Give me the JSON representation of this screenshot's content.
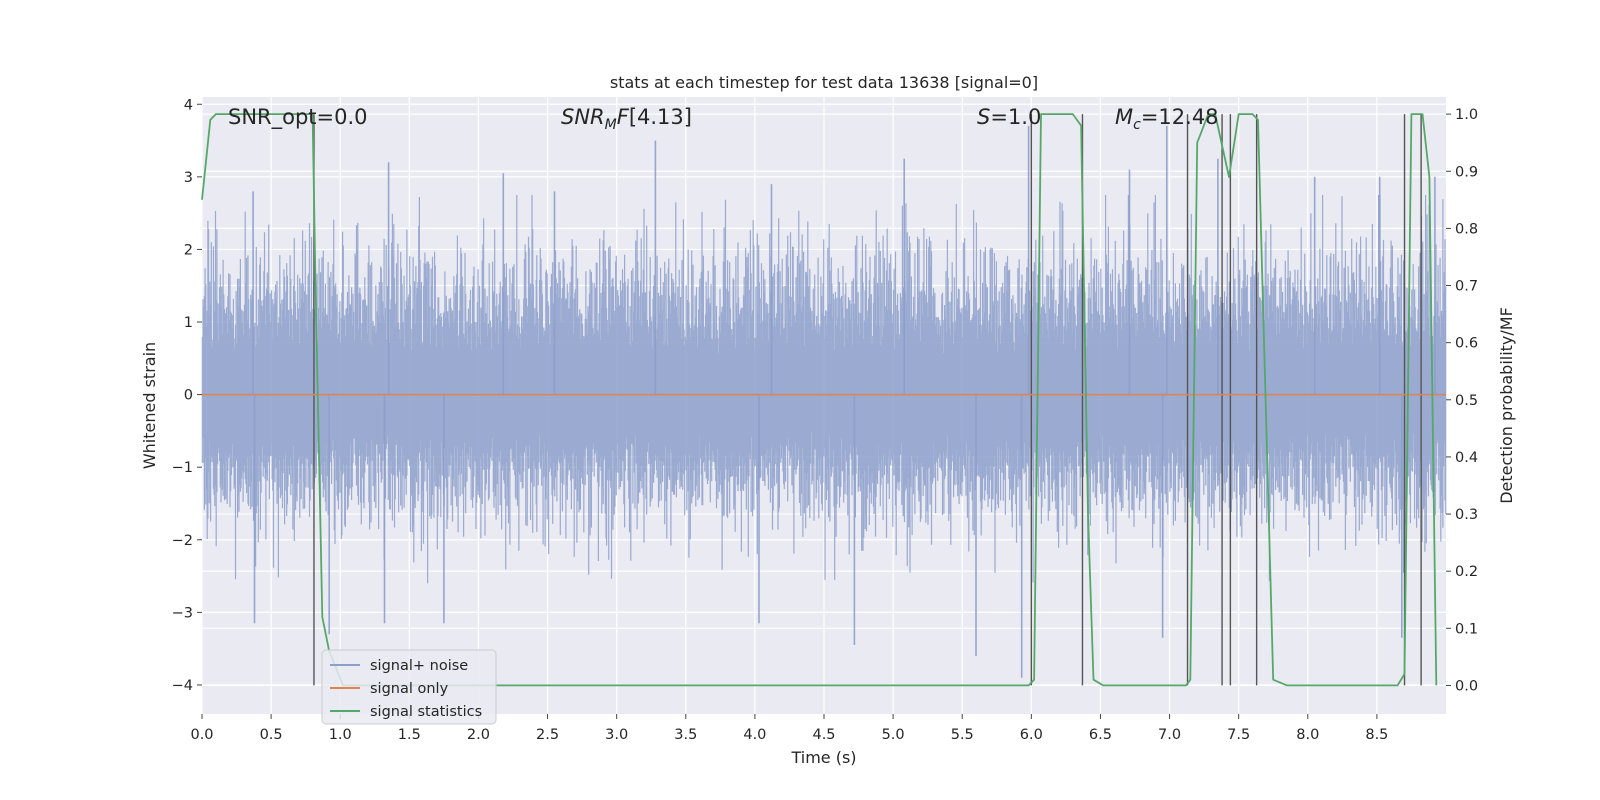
{
  "chart_data": {
    "type": "line",
    "title": "stats at each timestep for test data 13638 [signal=0]",
    "xlabel": "Time (s)",
    "ylabel": "Whitened strain",
    "y2label": "Detection probability/MF",
    "xlim": [
      0.0,
      9.0
    ],
    "ylim": [
      -4.4,
      4.1
    ],
    "y2lim": [
      -0.05,
      1.03
    ],
    "xticks": [
      "0.0",
      "0.5",
      "1.0",
      "1.5",
      "2.0",
      "2.5",
      "3.0",
      "3.5",
      "4.0",
      "4.5",
      "5.0",
      "5.5",
      "6.0",
      "6.5",
      "7.0",
      "7.5",
      "8.0",
      "8.5"
    ],
    "yticks": [
      "4",
      "3",
      "2",
      "1",
      "0",
      "−1",
      "−2",
      "−3",
      "−4"
    ],
    "y2ticks": [
      "1.0",
      "0.9",
      "0.8",
      "0.7",
      "0.6",
      "0.5",
      "0.4",
      "0.3",
      "0.2",
      "0.1",
      "0.0"
    ],
    "grid": true,
    "legend_position": "lower-left",
    "annotations": {
      "snr_opt": "SNR_opt=0.0",
      "snr_mf": "[4.13]",
      "s_stat": "=1.0",
      "mc": "=12.48"
    },
    "series": [
      {
        "name": "signal+ noise",
        "color": "#8c9fca",
        "axis": "left",
        "description_values": {
          "upper_p95": 2.4,
          "lower_p5": -2.1,
          "max": 3.8,
          "min": -3.9
        },
        "notable_peaks": [
          [
            0.37,
            2.8
          ],
          [
            1.35,
            3.2
          ],
          [
            2.18,
            3.05
          ],
          [
            2.55,
            2.8
          ],
          [
            3.28,
            3.5
          ],
          [
            4.12,
            2.9
          ],
          [
            5.08,
            3.25
          ],
          [
            5.98,
            3.7
          ],
          [
            6.71,
            3.1
          ],
          [
            6.98,
            3.7
          ],
          [
            7.35,
            3.25
          ],
          [
            8.05,
            3.0
          ],
          [
            8.52,
            3.0
          ],
          [
            8.92,
            3.0
          ]
        ],
        "notable_troughs": [
          [
            0.38,
            -3.15
          ],
          [
            0.92,
            -3.3
          ],
          [
            1.32,
            -3.15
          ],
          [
            1.75,
            -3.15
          ],
          [
            4.03,
            -3.15
          ],
          [
            4.72,
            -3.45
          ],
          [
            5.6,
            -3.6
          ],
          [
            5.93,
            -3.9
          ],
          [
            6.95,
            -3.35
          ],
          [
            8.68,
            -3.35
          ]
        ]
      },
      {
        "name": "signal only",
        "color": "#dd8452",
        "axis": "left",
        "x": [
          0.0,
          9.0
        ],
        "y": [
          0.0,
          0.0
        ]
      },
      {
        "name": "signal statistics",
        "color": "#55a868",
        "axis": "right",
        "x": [
          0.0,
          0.06,
          0.1,
          0.5,
          0.8,
          0.82,
          0.87,
          0.92,
          1.02,
          5.98,
          6.02,
          6.07,
          6.3,
          6.36,
          6.41,
          6.45,
          6.52,
          7.12,
          7.15,
          7.2,
          7.28,
          7.33,
          7.43,
          7.5,
          7.6,
          7.64,
          7.75,
          7.85,
          7.98,
          8.65,
          8.7,
          8.75,
          8.78,
          8.83,
          8.88,
          8.93
        ],
        "y": [
          0.85,
          0.99,
          1.0,
          1.0,
          1.0,
          0.72,
          0.12,
          0.06,
          0.0,
          0.0,
          0.01,
          1.0,
          1.0,
          0.98,
          0.3,
          0.01,
          0.0,
          0.0,
          0.01,
          0.95,
          1.0,
          1.0,
          0.89,
          1.0,
          1.0,
          0.99,
          0.01,
          0.0,
          0.0,
          0.0,
          0.02,
          1.0,
          1.0,
          1.0,
          0.89,
          0.0
        ]
      }
    ],
    "vertical_markers": [
      0.81,
      6.0,
      6.37,
      7.13,
      7.38,
      7.44,
      7.63,
      8.7,
      8.82
    ]
  }
}
